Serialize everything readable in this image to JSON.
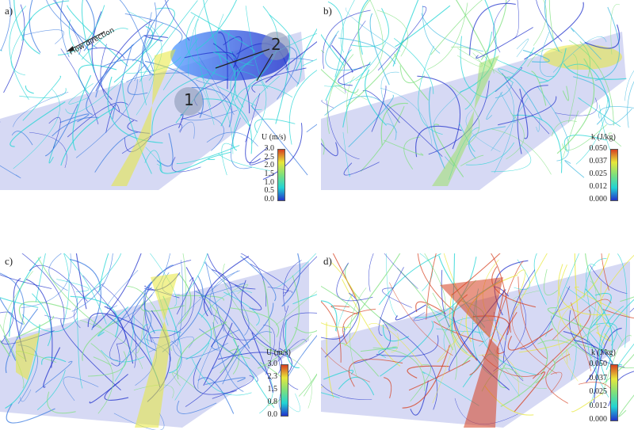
{
  "panels": [
    {
      "id": "a",
      "label": "a)",
      "colorbar": {
        "title": "U (m/s)",
        "ticks": [
          "3.0",
          "2.5",
          "2.0",
          "1.5",
          "1.0",
          "0.5",
          "0.0"
        ]
      },
      "annotations": {
        "flow": "Flow direction",
        "marker1": "1",
        "marker2": "2"
      }
    },
    {
      "id": "b",
      "label": "b)",
      "colorbar": {
        "title": "k (J/kg)",
        "ticks": [
          "0.050",
          "0.037",
          "0.025",
          "0.012",
          "0.000"
        ]
      }
    },
    {
      "id": "c",
      "label": "c)",
      "colorbar": {
        "title": "U (m/s)",
        "ticks": [
          "3.0",
          "2.3",
          "1.5",
          "0.8",
          "0.0"
        ]
      }
    },
    {
      "id": "d",
      "label": "d)",
      "colorbar": {
        "title": "k (J/kg)",
        "ticks": [
          "0.050",
          "0.037",
          "0.025",
          "0.012",
          "0.000"
        ]
      }
    }
  ],
  "colors": {
    "low": "#2233cc",
    "mid": "#22d4d4",
    "high": "#e8e83a",
    "max": "#d64020",
    "channel": "#b8bde8"
  }
}
